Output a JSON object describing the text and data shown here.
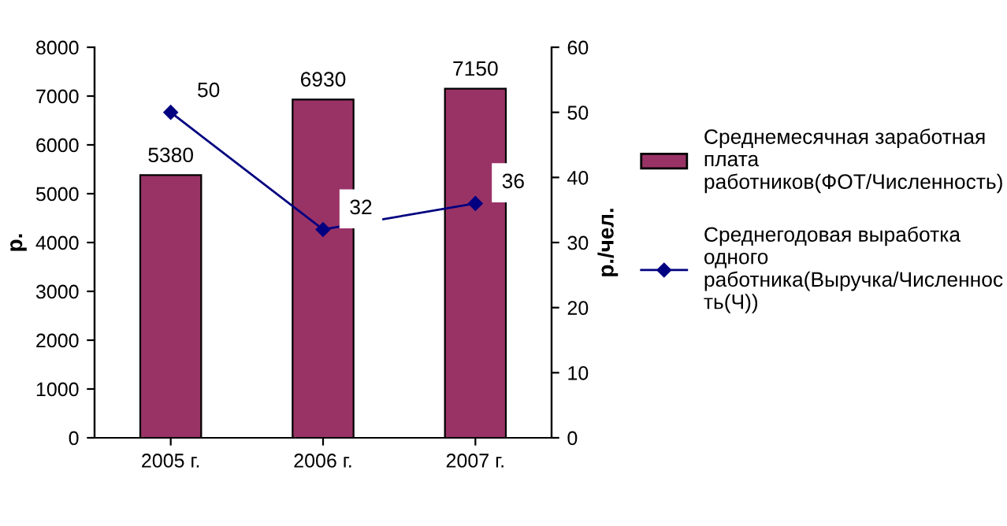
{
  "chart_data": {
    "type": "bar",
    "categories": [
      "2005 г.",
      "2006 г.",
      "2007 г."
    ],
    "series": [
      {
        "name": "Среднемесячная заработная\nплата\nработников(ФОТ/Численность)",
        "color": "#993366",
        "values": [
          5380,
          6930,
          7150
        ]
      },
      {
        "name": "Среднегодовая выработка\nодного\nработника(Выручка/Численнос\nть(Ч))",
        "type": "line",
        "axis": "y2",
        "color": "#000080",
        "marker": "diamond",
        "values": [
          50,
          32,
          36
        ]
      }
    ],
    "ylabel": "р.",
    "y2label": "р./чел.",
    "ylim": [
      0,
      8000
    ],
    "yticks": [
      0,
      1000,
      2000,
      3000,
      4000,
      5000,
      6000,
      7000,
      8000
    ],
    "y2lim": [
      0,
      60
    ],
    "y2ticks": [
      0,
      10,
      20,
      30,
      40,
      50,
      60
    ],
    "data_labels": true,
    "legend": "right",
    "grid": false
  }
}
